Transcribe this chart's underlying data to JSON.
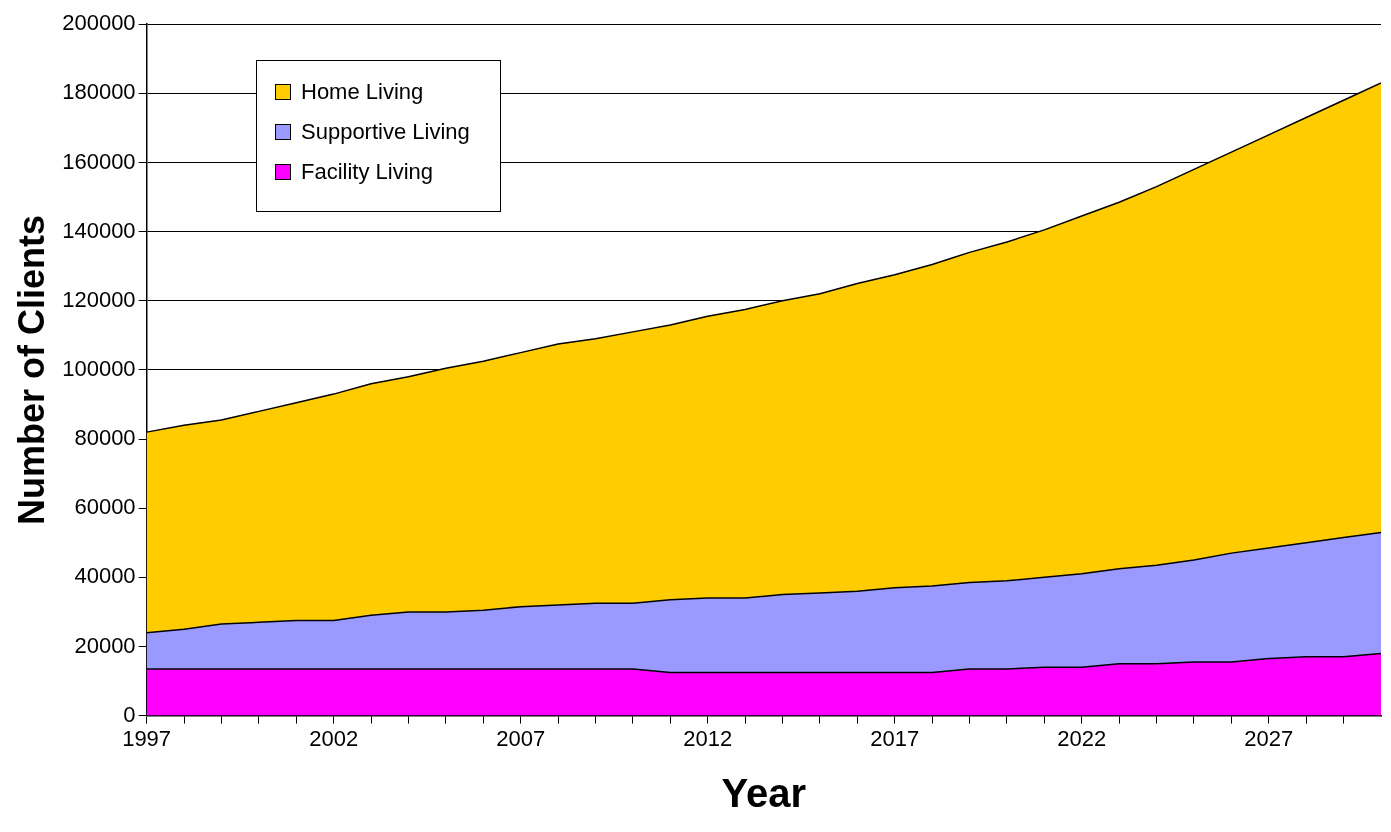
{
  "chart_data": {
    "type": "area",
    "xlabel": "Year",
    "ylabel": "Number of Clients",
    "stacked": true,
    "grid": "y",
    "legend": "top left",
    "x": [
      1997,
      1998,
      1999,
      2000,
      2001,
      2002,
      2003,
      2004,
      2005,
      2006,
      2007,
      2008,
      2009,
      2010,
      2011,
      2012,
      2013,
      2014,
      2015,
      2016,
      2017,
      2018,
      2019,
      2020,
      2021,
      2022,
      2023,
      2024,
      2025,
      2026,
      2027,
      2028,
      2029,
      2030
    ],
    "xlim": [
      1997,
      2030
    ],
    "xticks": [
      1997,
      {
        "value": 1998,
        "label": null
      },
      {
        "value": 1999,
        "label": null
      },
      {
        "value": 2000,
        "label": null
      },
      {
        "value": 2001,
        "label": null
      },
      2002,
      {
        "value": 2003,
        "label": null
      },
      {
        "value": 2004,
        "label": null
      },
      {
        "value": 2005,
        "label": null
      },
      {
        "value": 2006,
        "label": null
      },
      2007,
      {
        "value": 2008,
        "label": null
      },
      {
        "value": 2009,
        "label": null
      },
      {
        "value": 2010,
        "label": null
      },
      {
        "value": 2011,
        "label": null
      },
      2012,
      {
        "value": 2013,
        "label": null
      },
      {
        "value": 2014,
        "label": null
      },
      {
        "value": 2015,
        "label": null
      },
      {
        "value": 2016,
        "label": null
      },
      2017,
      {
        "value": 2018,
        "label": null
      },
      {
        "value": 2019,
        "label": null
      },
      {
        "value": 2020,
        "label": null
      },
      {
        "value": 2021,
        "label": null
      },
      2022,
      {
        "value": 2023,
        "label": null
      },
      {
        "value": 2024,
        "label": null
      },
      {
        "value": 2025,
        "label": null
      },
      {
        "value": 2026,
        "label": null
      },
      2027,
      {
        "value": 2028,
        "label": null
      },
      {
        "value": 2029,
        "label": null
      }
    ],
    "ylim": [
      0,
      200000
    ],
    "yticks": [
      0,
      20000,
      40000,
      60000,
      80000,
      100000,
      120000,
      140000,
      160000,
      180000,
      200000
    ],
    "series": [
      {
        "name": "Facility Living",
        "color": "#ff00ff",
        "values": [
          13500,
          13500,
          13500,
          13500,
          13500,
          13500,
          13500,
          13500,
          13500,
          13500,
          13500,
          13500,
          13500,
          13500,
          12500,
          12500,
          12500,
          12500,
          12500,
          12500,
          12500,
          12500,
          13500,
          13500,
          14000,
          14000,
          15000,
          15000,
          15500,
          15500,
          16500,
          17000,
          17000,
          18000
        ]
      },
      {
        "name": "Supportive Living",
        "color": "#9999ff",
        "values": [
          10500,
          11500,
          13000,
          13500,
          14000,
          14000,
          15500,
          16500,
          16500,
          17000,
          18000,
          18500,
          19000,
          19000,
          21000,
          21500,
          21500,
          22500,
          23000,
          23500,
          24500,
          25000,
          25000,
          25500,
          26000,
          27000,
          27500,
          28500,
          29500,
          31500,
          32000,
          33000,
          34500,
          35000
        ]
      },
      {
        "name": "Home Living",
        "color": "#ffcc00",
        "values": [
          58000,
          59000,
          59000,
          61000,
          63000,
          65500,
          67000,
          68000,
          70500,
          72000,
          73500,
          75500,
          76500,
          78500,
          79500,
          81500,
          83500,
          85000,
          86500,
          89000,
          90500,
          93000,
          95500,
          98000,
          100500,
          103500,
          106000,
          109500,
          113000,
          116000,
          119500,
          123000,
          126500,
          130000
        ]
      }
    ]
  }
}
